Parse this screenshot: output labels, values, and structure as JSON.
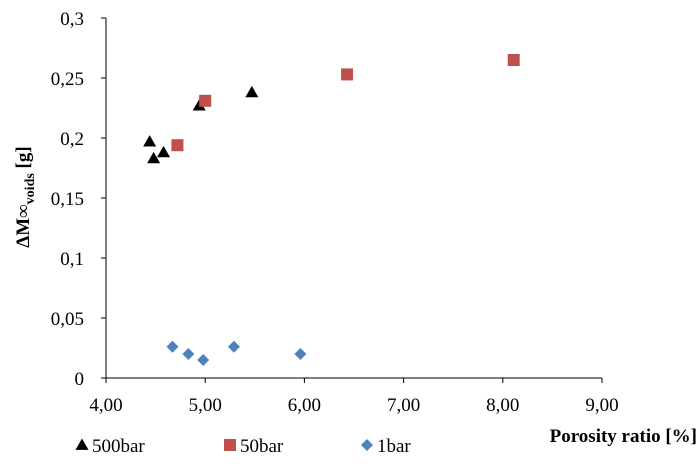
{
  "chart_data": {
    "type": "scatter",
    "xlabel": "Porosity ratio [%]",
    "ylabel": {
      "main": "ΔM∞",
      "subscript": "voids",
      "unit": " [g]"
    },
    "xlim": [
      4,
      9
    ],
    "ylim": [
      0,
      0.3
    ],
    "x_ticks": [
      {
        "value": 4,
        "label": "4,00"
      },
      {
        "value": 5,
        "label": "5,00"
      },
      {
        "value": 6,
        "label": "6,00"
      },
      {
        "value": 7,
        "label": "7,00"
      },
      {
        "value": 8,
        "label": "8,00"
      },
      {
        "value": 9,
        "label": "9,00"
      }
    ],
    "y_ticks": [
      {
        "value": 0,
        "label": "0"
      },
      {
        "value": 0.05,
        "label": "0,05"
      },
      {
        "value": 0.1,
        "label": "0,1"
      },
      {
        "value": 0.15,
        "label": "0,15"
      },
      {
        "value": 0.2,
        "label": "0,2"
      },
      {
        "value": 0.25,
        "label": "0,25"
      },
      {
        "value": 0.3,
        "label": "0,3"
      }
    ],
    "grid": false,
    "legend_position": "bottom",
    "series": [
      {
        "name": "500bar",
        "marker": "triangle",
        "color": "#000000",
        "points": [
          {
            "x": 4.44,
            "y": 0.197
          },
          {
            "x": 4.48,
            "y": 0.183
          },
          {
            "x": 4.58,
            "y": 0.188
          },
          {
            "x": 4.94,
            "y": 0.227
          },
          {
            "x": 5.47,
            "y": 0.238
          }
        ]
      },
      {
        "name": "50bar",
        "marker": "square",
        "color": "#c0504d",
        "points": [
          {
            "x": 4.72,
            "y": 0.194
          },
          {
            "x": 5.0,
            "y": 0.231
          },
          {
            "x": 6.43,
            "y": 0.253
          },
          {
            "x": 8.11,
            "y": 0.265
          }
        ]
      },
      {
        "name": "1bar",
        "marker": "diamond",
        "color": "#4f81bd",
        "points": [
          {
            "x": 4.67,
            "y": 0.026
          },
          {
            "x": 4.83,
            "y": 0.02
          },
          {
            "x": 4.98,
            "y": 0.015
          },
          {
            "x": 5.29,
            "y": 0.026
          },
          {
            "x": 5.96,
            "y": 0.02
          }
        ]
      }
    ]
  }
}
